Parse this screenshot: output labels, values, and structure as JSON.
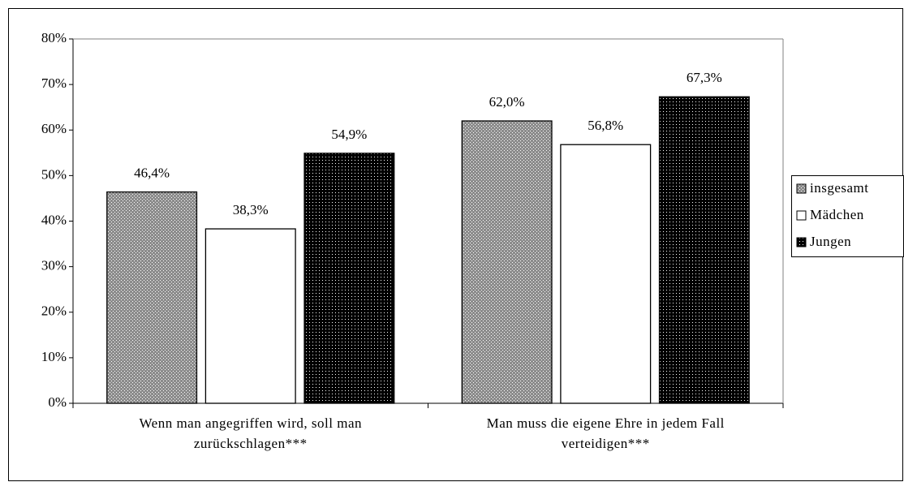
{
  "chart_data": {
    "type": "bar",
    "categories": [
      "Wenn man angegriffen wird, soll man zurückschlagen***",
      "Man muss die eigene Ehre in jedem Fall verteidigen***"
    ],
    "series": [
      {
        "name": "insgesamt",
        "color": "#8c8c8c",
        "values": [
          46.4,
          62.0
        ],
        "value_labels": [
          "46,4%",
          "62,0%"
        ]
      },
      {
        "name": "Mädchen",
        "color": "#ffffff",
        "values": [
          38.3,
          56.8
        ],
        "value_labels": [
          "38,3%",
          "56,8%"
        ]
      },
      {
        "name": "Jungen",
        "color": "#000000",
        "values": [
          54.9,
          67.3
        ],
        "value_labels": [
          "54,9%",
          "67,3%"
        ]
      }
    ],
    "ylim": [
      0,
      80
    ],
    "yticks": [
      {
        "value": 0,
        "label": "0%"
      },
      {
        "value": 10,
        "label": "10%"
      },
      {
        "value": 20,
        "label": "20%"
      },
      {
        "value": 30,
        "label": "30%"
      },
      {
        "value": 40,
        "label": "40%"
      },
      {
        "value": 50,
        "label": "50%"
      },
      {
        "value": 60,
        "label": "60%"
      },
      {
        "value": 70,
        "label": "70%"
      },
      {
        "value": 80,
        "label": "80%"
      }
    ],
    "grid": false,
    "legend": "right"
  }
}
